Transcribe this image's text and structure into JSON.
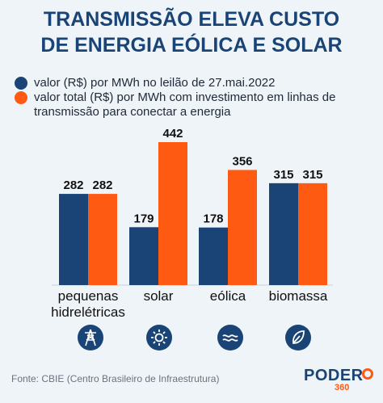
{
  "title": {
    "line1": "TRANSMISSÃO ELEVA CUSTO",
    "line2": "DE ENERGIA EÓLICA E SOLAR"
  },
  "legend": [
    {
      "text": "valor (R$) por MWh no leilão de 27.mai.2022",
      "color": "#1b4476"
    },
    {
      "text": "valor total (R$) por MWh com investimento em linhas de transmissão para conectar a energia",
      "color": "#ff5a12"
    }
  ],
  "chart_data": {
    "type": "bar",
    "categories": [
      "pequenas hidrelétricas",
      "solar",
      "eólica",
      "biomassa"
    ],
    "category_lines": [
      [
        "pequenas",
        "hidrelétricas"
      ],
      [
        "solar"
      ],
      [
        "eólica"
      ],
      [
        "biomassa"
      ]
    ],
    "series": [
      {
        "name": "valor (R$) por MWh no leilão de 27.mai.2022",
        "color": "#1b4476",
        "values": [
          282,
          179,
          178,
          315
        ]
      },
      {
        "name": "valor total (R$) por MWh com investimento em linhas de transmissão para conectar a energia",
        "color": "#ff5a12",
        "values": [
          282,
          442,
          356,
          315
        ]
      }
    ],
    "ylim": [
      0,
      442
    ],
    "grid": false,
    "legend_position": "top-left"
  },
  "icons": [
    "transmission-tower-icon",
    "sun-icon",
    "wind-icon",
    "leaf-icon"
  ],
  "icon_color": "#1b4476",
  "source": "Fonte: CBIE (Centro Brasileiro de Infraestrutura)",
  "logo": {
    "brand": "PODER",
    "number": "360"
  }
}
